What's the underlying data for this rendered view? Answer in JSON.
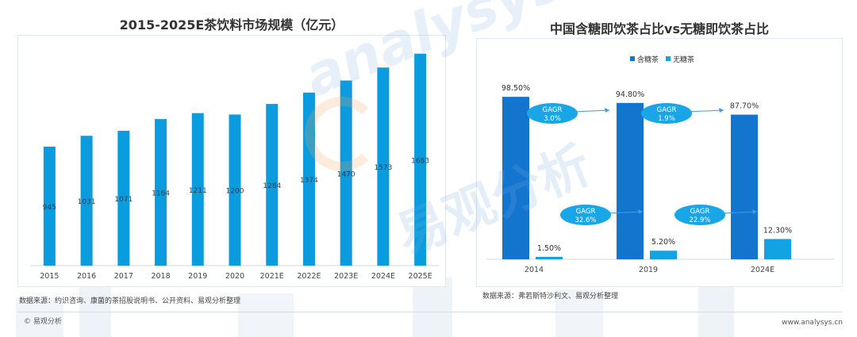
{
  "left_chart": {
    "title": "2015-2025E茶饮料市场规模（亿元）",
    "source": "数据来源：约识咨询、康菌的茶招股说明书、公开资料、易观分析整理"
  },
  "right_chart": {
    "title": "中国含糖即饮茶占比vs无糖即饮茶占比",
    "source": "数据来源：弗若斯特沙利文、易观分析整理"
  },
  "footer": {
    "brand": "© 易观分析",
    "url": "www.analysys.cn"
  },
  "watermark": {
    "text_en": "analysys",
    "text_cn": "易观分析"
  },
  "colors": {
    "bar": "#0a9cde",
    "sugar": "#1475cf",
    "nosugar": "#13a3e4",
    "bubble": "#19a6e6"
  },
  "chart_data": [
    {
      "type": "bar",
      "title": "2015-2025E茶饮料市场规模（亿元）",
      "categories": [
        "2015",
        "2016",
        "2017",
        "2018",
        "2019",
        "2020",
        "2021E",
        "2022E",
        "2023E",
        "2024E",
        "2025E"
      ],
      "values": [
        945,
        1031,
        1071,
        1164,
        1211,
        1200,
        1284,
        1374,
        1470,
        1573,
        1683
      ],
      "value_labels": [
        "945",
        "1031",
        "1071",
        "1164",
        "1211",
        "1200",
        "1284",
        "1374",
        "1470",
        "1573",
        "1683"
      ],
      "ylim": [
        0,
        1700
      ],
      "grid": false
    },
    {
      "type": "bar",
      "title": "中国含糖即饮茶占比vs无糖即饮茶占比",
      "categories": [
        "2014",
        "2019",
        "2024E"
      ],
      "series": [
        {
          "name": "含糖茶",
          "values": [
            98.5,
            94.8,
            87.7
          ],
          "labels": [
            "98.50%",
            "94.80%",
            "87.70%"
          ]
        },
        {
          "name": "无糖茶",
          "values": [
            1.5,
            5.2,
            12.3
          ],
          "labels": [
            "1.50%",
            "5.20%",
            "12.30%"
          ]
        }
      ],
      "ylim": [
        0,
        100
      ],
      "legend": "top-center",
      "annotations": [
        {
          "label": "GAGR",
          "value": "3.0%",
          "series": "含糖茶",
          "from": "2014",
          "to": "2019"
        },
        {
          "label": "GAGR",
          "value": "1.9%",
          "series": "含糖茶",
          "from": "2019",
          "to": "2024E"
        },
        {
          "label": "GAGR",
          "value": "32.6%",
          "series": "无糖茶",
          "from": "2014",
          "to": "2019"
        },
        {
          "label": "GAGR",
          "value": "22.9%",
          "series": "无糖茶",
          "from": "2019",
          "to": "2024E"
        }
      ]
    }
  ]
}
